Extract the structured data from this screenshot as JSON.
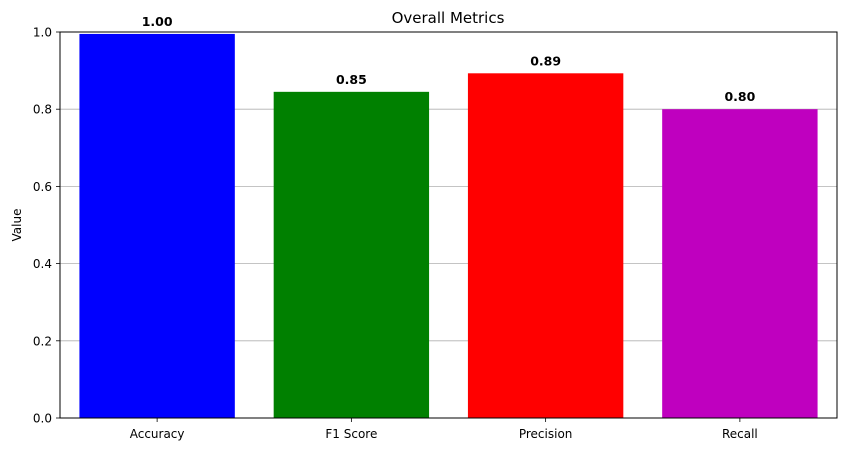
{
  "chart_data": {
    "type": "bar",
    "title": "Overall Metrics",
    "xlabel": "",
    "ylabel": "Value",
    "categories": [
      "Accuracy",
      "F1 Score",
      "Precision",
      "Recall"
    ],
    "values": [
      0.995,
      0.845,
      0.893,
      0.8
    ],
    "data_labels": [
      "1.00",
      "0.85",
      "0.89",
      "0.80"
    ],
    "colors": [
      "#0000ff",
      "#008000",
      "#ff0000",
      "#bf00bf"
    ],
    "ylim": [
      0,
      1
    ],
    "yticks": [
      0,
      0.2,
      0.4,
      0.6,
      0.8,
      1.0
    ],
    "ytick_labels": [
      "0.0",
      "0.2",
      "0.4",
      "0.6",
      "0.8",
      "1.0"
    ],
    "grid": "y-axis horizontal",
    "legend": "none"
  }
}
